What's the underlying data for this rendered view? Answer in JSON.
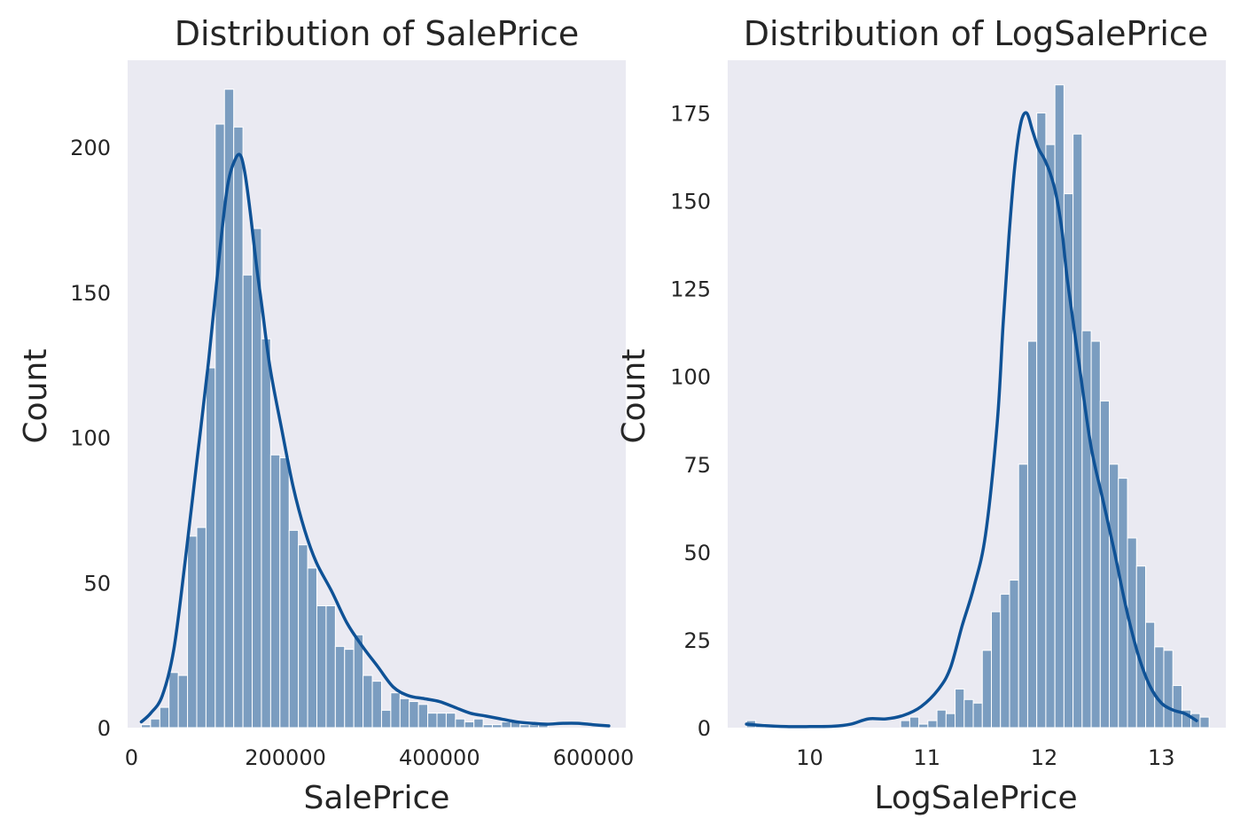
{
  "chart_data": [
    {
      "type": "bar",
      "subtype": "histogram",
      "title": "Distribution of SalePrice",
      "xlabel": "SalePrice",
      "ylabel": "Count",
      "xlim": [
        -5000,
        642000
      ],
      "ylim": [
        0,
        230
      ],
      "xticks": [
        0,
        200000,
        400000,
        600000
      ],
      "xtick_labels": [
        "0",
        "200000",
        "400000",
        "600000"
      ],
      "yticks": [
        0,
        50,
        100,
        150,
        200
      ],
      "ytick_labels": [
        "0",
        "50",
        "100",
        "150",
        "200"
      ],
      "grid": false,
      "legend": "none",
      "bin_start": 12789,
      "bin_width": 12000,
      "counts": [
        1,
        3,
        7,
        19,
        18,
        66,
        69,
        124,
        208,
        220,
        207,
        156,
        172,
        134,
        94,
        93,
        68,
        63,
        55,
        42,
        42,
        28,
        27,
        32,
        18,
        16,
        6,
        12,
        10,
        9,
        8,
        5,
        5,
        5,
        3,
        2,
        3,
        1,
        1,
        2,
        2,
        1,
        1,
        1
      ],
      "kde": {
        "x": [
          12789,
          25000,
          40000,
          55000,
          70000,
          85000,
          100000,
          115000,
          125000,
          135000,
          142000,
          148000,
          155000,
          162000,
          170000,
          180000,
          195000,
          210000,
          225000,
          240000,
          260000,
          280000,
          300000,
          320000,
          340000,
          360000,
          380000,
          400000,
          420000,
          440000,
          460000,
          480000,
          500000,
          520000,
          540000,
          560000,
          580000,
          600000,
          620000
        ],
        "y": [
          2,
          5,
          11,
          27,
          58,
          92,
          126,
          165,
          187,
          196,
          197,
          190,
          176,
          160,
          144,
          124,
          103,
          83,
          68,
          57,
          47,
          36,
          28,
          21,
          14,
          11,
          10,
          9,
          7,
          5,
          4,
          3,
          2,
          1.5,
          1.2,
          1.5,
          1.5,
          1,
          0.6
        ]
      },
      "bar_color": "#7b9dc0",
      "line_color": "#0f5296",
      "background_color": "#eaeaf2"
    },
    {
      "type": "bar",
      "subtype": "histogram",
      "title": "Distribution of LogSalePrice",
      "xlabel": "LogSalePrice",
      "ylabel": "Count",
      "xlim": [
        9.3,
        13.55
      ],
      "ylim": [
        0,
        190
      ],
      "xticks": [
        10,
        11,
        12,
        13
      ],
      "xtick_labels": [
        "10",
        "11",
        "12",
        "13"
      ],
      "yticks": [
        0,
        25,
        50,
        75,
        100,
        125,
        150,
        175
      ],
      "ytick_labels": [
        "0",
        "25",
        "50",
        "75",
        "100",
        "125",
        "150",
        "175"
      ],
      "grid": false,
      "legend": "none",
      "bin_start": 9.46,
      "bin_width": 0.0774,
      "counts": [
        2,
        1,
        0,
        0,
        0,
        0,
        0,
        0,
        0,
        0,
        0,
        0,
        0,
        0,
        0,
        0,
        0,
        2,
        3,
        1,
        2,
        5,
        4,
        11,
        8,
        7,
        22,
        33,
        38,
        42,
        75,
        110,
        175,
        166,
        183,
        152,
        169,
        113,
        110,
        93,
        75,
        71,
        54,
        46,
        30,
        23,
        22,
        12,
        5,
        4,
        3
      ],
      "kde": {
        "x": [
          9.46,
          9.6,
          9.8,
          10.0,
          10.2,
          10.35,
          10.5,
          10.65,
          10.8,
          10.95,
          11.1,
          11.2,
          11.3,
          11.4,
          11.5,
          11.6,
          11.65,
          11.7,
          11.75,
          11.8,
          11.85,
          11.9,
          11.95,
          12.0,
          12.05,
          12.1,
          12.15,
          12.2,
          12.3,
          12.4,
          12.5,
          12.6,
          12.7,
          12.8,
          12.9,
          13.0,
          13.1,
          13.2,
          13.3
        ],
        "y": [
          1,
          0.6,
          0.3,
          0.3,
          0.4,
          1,
          2.5,
          2.5,
          3.5,
          6,
          11,
          17,
          29,
          40,
          55,
          87,
          115,
          140,
          160,
          172,
          175,
          170,
          165,
          162,
          158,
          152,
          142,
          127,
          103,
          80,
          65,
          50,
          34,
          21,
          12,
          7,
          5,
          4,
          2
        ]
      },
      "bar_color": "#7b9dc0",
      "line_color": "#0f5296",
      "background_color": "#eaeaf2"
    }
  ]
}
